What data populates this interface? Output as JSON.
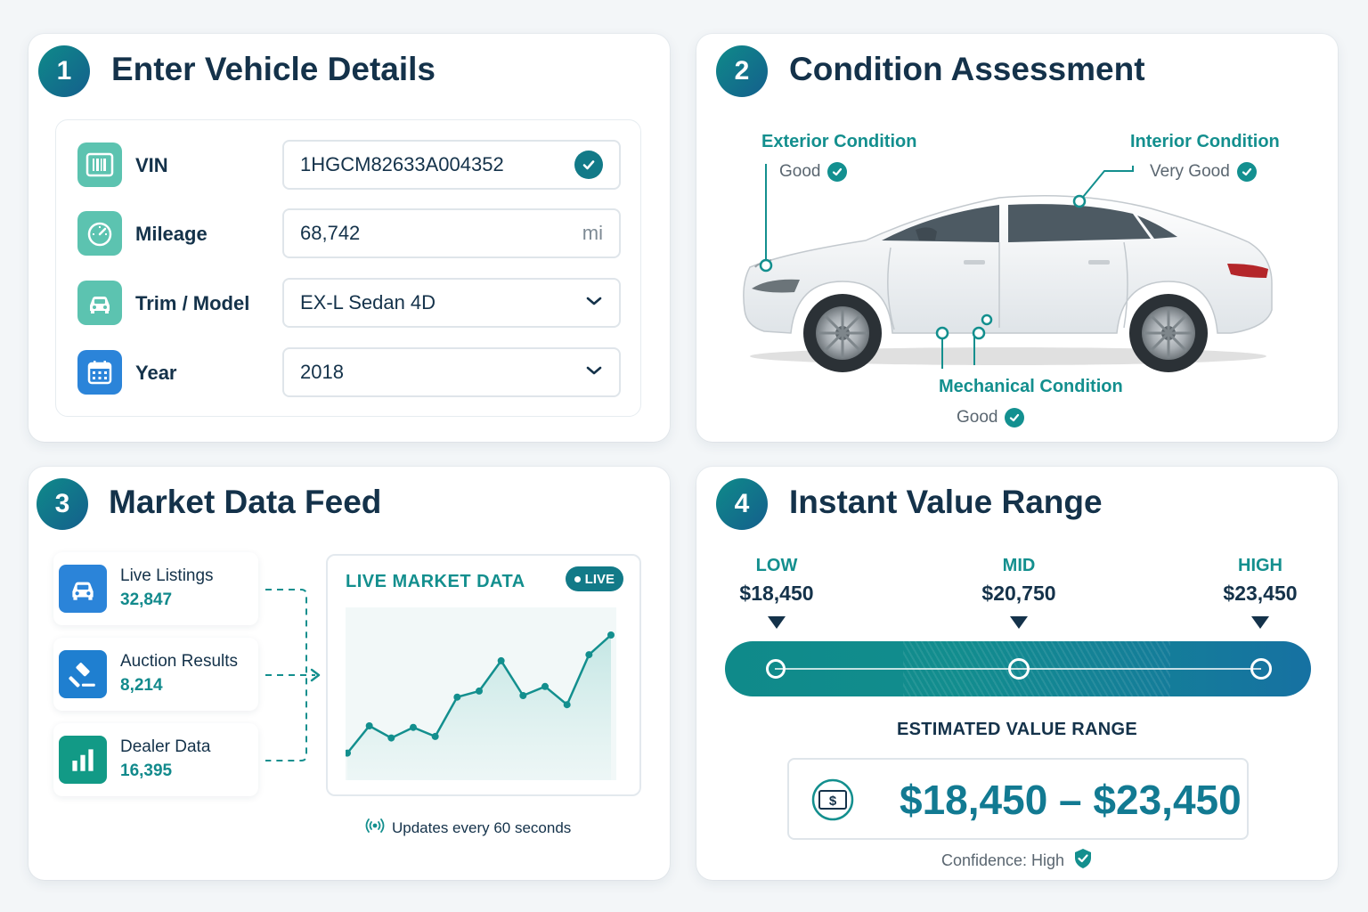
{
  "colors": {
    "teal": "#138f8e",
    "navy": "#14324a",
    "blue": "#1671a2"
  },
  "step1": {
    "number": "1",
    "title": "Enter Vehicle Details",
    "fields": [
      {
        "label": "VIN",
        "value": "1HGCM82633A004352",
        "icon": "barcode-icon",
        "control": "verified"
      },
      {
        "label": "Mileage",
        "value": "68,742",
        "unit": "mi",
        "icon": "speedometer-icon",
        "control": "text"
      },
      {
        "label": "Trim / Model",
        "value": "EX-L Sedan 4D",
        "icon": "car-icon",
        "control": "select"
      },
      {
        "label": "Year",
        "value": "2018",
        "icon": "calendar-icon",
        "control": "select"
      }
    ]
  },
  "step2": {
    "number": "2",
    "title": "Condition Assessment",
    "exterior": {
      "label": "Exterior Condition",
      "value": "Good"
    },
    "interior": {
      "label": "Interior Condition",
      "value": "Very Good"
    },
    "mechanical": {
      "label": "Mechanical Condition",
      "value": "Good"
    }
  },
  "step3": {
    "number": "3",
    "title": "Market Data Feed",
    "sources": [
      {
        "name": "Live Listings",
        "count": "32,847",
        "icon": "car-icon"
      },
      {
        "name": "Auction Results",
        "count": "8,214",
        "icon": "gavel-icon"
      },
      {
        "name": "Dealer Data",
        "count": "16,395",
        "icon": "bar-chart-icon"
      }
    ],
    "chart_title": "LIVE MARKET DATA",
    "live_badge": "LIVE",
    "updates": "Updates every 60 seconds"
  },
  "chart_data": {
    "type": "line",
    "title": "LIVE MARKET DATA",
    "x": [
      1,
      2,
      3,
      4,
      5,
      6,
      7,
      8,
      9,
      10,
      11,
      12,
      13
    ],
    "values": [
      12,
      30,
      22,
      29,
      23,
      49,
      53,
      73,
      50,
      56,
      44,
      77,
      90
    ],
    "ylim": [
      0,
      100
    ],
    "grid": false,
    "area_fill": true
  },
  "step4": {
    "number": "4",
    "title": "Instant Value Range",
    "low": {
      "label": "LOW",
      "amount": "$18,450"
    },
    "mid": {
      "label": "MID",
      "amount": "$20,750"
    },
    "high": {
      "label": "HIGH",
      "amount": "$23,450"
    },
    "range_fraction": {
      "low": 0,
      "mid": 0.46,
      "high": 1
    },
    "estimated_label": "ESTIMATED VALUE RANGE",
    "range_value": "$18,450 – $23,450",
    "confidence": "Confidence: High"
  }
}
